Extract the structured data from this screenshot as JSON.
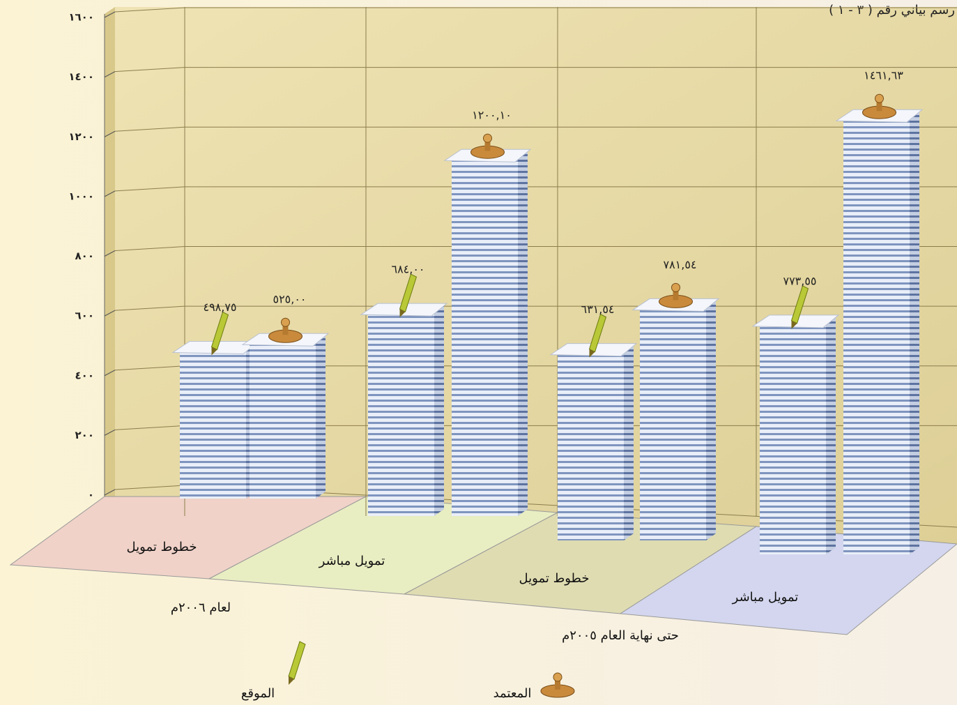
{
  "chart_data": {
    "type": "bar",
    "title": "رسم بياني رقم ( ٣ - ١ )",
    "categories": [
      "خطوط تمويل",
      "تمويل مباشر",
      "خطوط تمويل",
      "تمويل مباشر"
    ],
    "groups": [
      "لعام ٢٠٠٦م",
      "حتى نهاية العام ٢٠٠٥م"
    ],
    "series": [
      {
        "name": "الموقع",
        "color": "#b9c836",
        "values": [
          498.75,
          684.0,
          631.54,
          773.55
        ],
        "value_labels": [
          "٤٩٨,٧٥",
          "٦٨٤,٠٠",
          "٦٣١,٥٤",
          "٧٧٣,٥٥"
        ]
      },
      {
        "name": "المعتمد",
        "color": "#c98a3c",
        "values": [
          525.0,
          1200.1,
          781.54,
          1461.63
        ],
        "value_labels": [
          "٥٢٥,٠٠",
          "١٢٠٠,١٠",
          "٧٨١,٥٤",
          "١٤٦١,٦٣"
        ]
      }
    ],
    "ylim": [
      0,
      1600
    ],
    "yticks": [
      {
        "value": 0,
        "label": "٠"
      },
      {
        "value": 200,
        "label": "٢٠٠"
      },
      {
        "value": 400,
        "label": "٤٠٠"
      },
      {
        "value": 600,
        "label": "٦٠٠"
      },
      {
        "value": 800,
        "label": "٨٠٠"
      },
      {
        "value": 1000,
        "label": "١٠٠٠"
      },
      {
        "value": 1200,
        "label": "١٢٠٠"
      },
      {
        "value": 1400,
        "label": "١٤٠٠"
      },
      {
        "value": 1600,
        "label": "١٦٠٠"
      }
    ],
    "grid": true
  }
}
